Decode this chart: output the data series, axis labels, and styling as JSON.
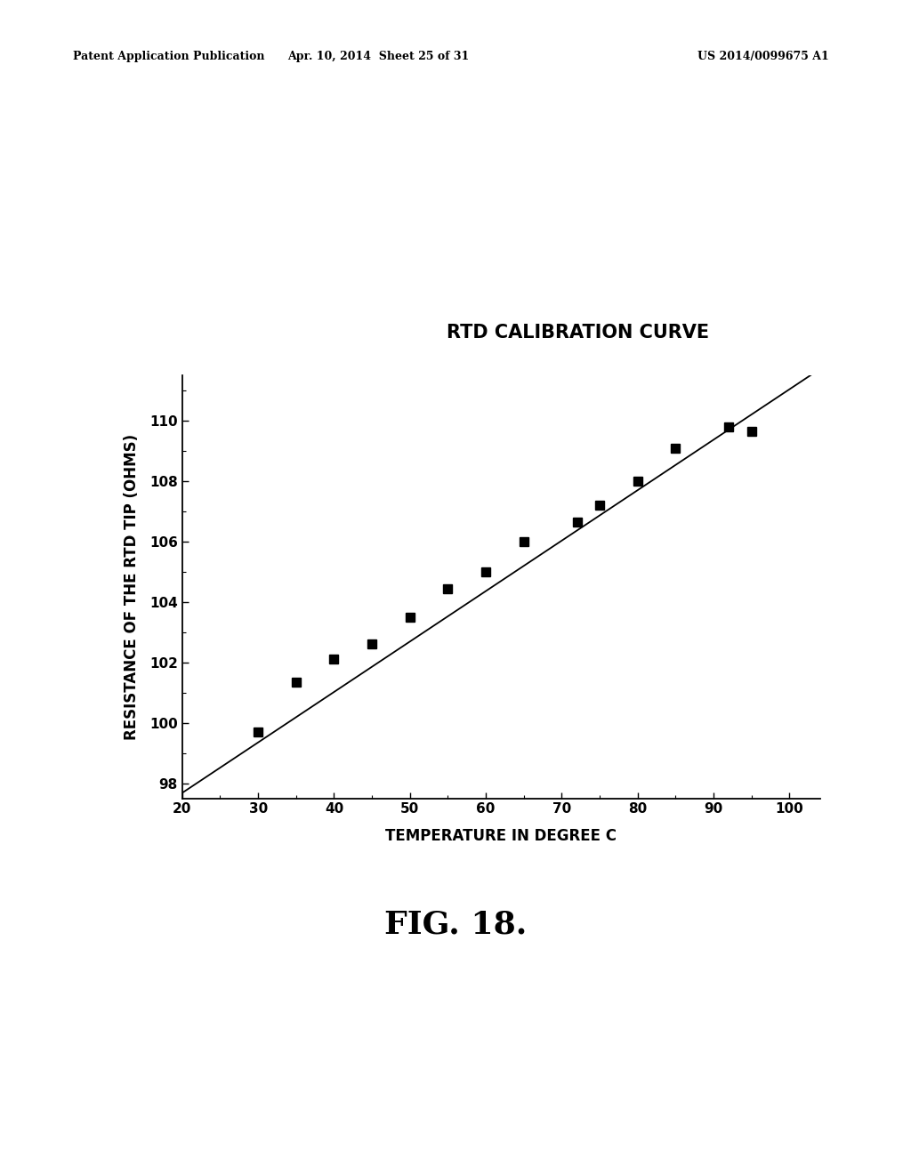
{
  "title": "RTD CALIBRATION CURVE",
  "xlabel": "TEMPERATURE IN DEGREE C",
  "ylabel": "RESISTANCE OF THE RTD TIP (OHMS)",
  "xlim": [
    20,
    104
  ],
  "ylim": [
    97.5,
    111.5
  ],
  "xticks": [
    20,
    30,
    40,
    50,
    60,
    70,
    80,
    90,
    100
  ],
  "yticks": [
    98,
    100,
    102,
    104,
    106,
    108,
    110
  ],
  "data_points_x": [
    30,
    35,
    40,
    45,
    50,
    55,
    60,
    65,
    72,
    75,
    80,
    85,
    92,
    95
  ],
  "data_points_y": [
    99.7,
    101.35,
    102.1,
    102.6,
    103.5,
    104.45,
    105.0,
    106.0,
    106.65,
    107.2,
    108.0,
    109.1,
    109.8,
    109.65
  ],
  "line_x": [
    20,
    104
  ],
  "line_y": [
    97.68,
    111.72
  ],
  "background_color": "#ffffff",
  "line_color": "#000000",
  "marker_color": "#000000",
  "text_color": "#000000",
  "header_left": "Patent Application Publication",
  "header_center": "Apr. 10, 2014  Sheet 25 of 31",
  "header_right": "US 2014/0099675 A1",
  "figure_label": "FIG. 18.",
  "title_fontsize": 15,
  "label_fontsize": 12,
  "tick_fontsize": 11,
  "header_fontsize": 9,
  "fig_label_fontsize": 26
}
